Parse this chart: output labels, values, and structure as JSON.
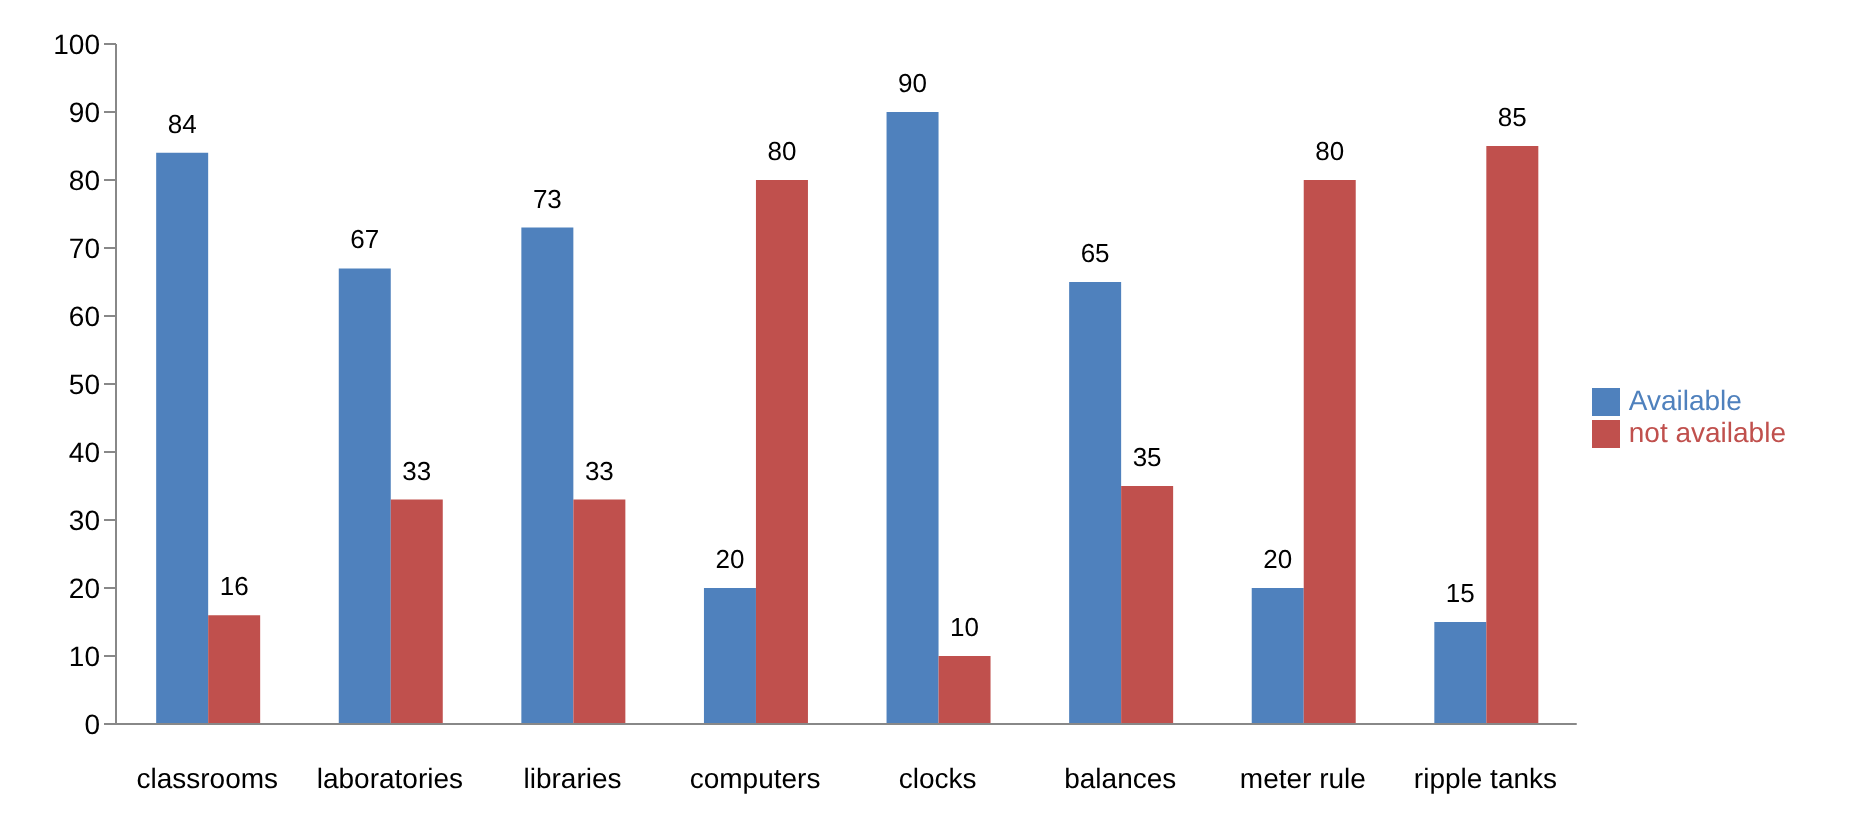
{
  "chart_data": {
    "type": "bar",
    "categories": [
      "classrooms",
      "laboratories",
      "libraries",
      "computers",
      "clocks",
      "balances",
      "meter rule",
      "ripple tanks"
    ],
    "series": [
      {
        "name": "Available",
        "color": "#4f81bd",
        "values": [
          84,
          67,
          73,
          20,
          90,
          65,
          20,
          15
        ]
      },
      {
        "name": "not available",
        "color": "#c0504d",
        "values": [
          16,
          33,
          33,
          80,
          10,
          35,
          80,
          85
        ]
      }
    ],
    "ylim": [
      0,
      100
    ],
    "yticks": [
      0,
      10,
      20,
      30,
      40,
      50,
      60,
      70,
      80,
      90,
      100
    ],
    "data_labels": true,
    "grid": false,
    "legend": "right"
  }
}
